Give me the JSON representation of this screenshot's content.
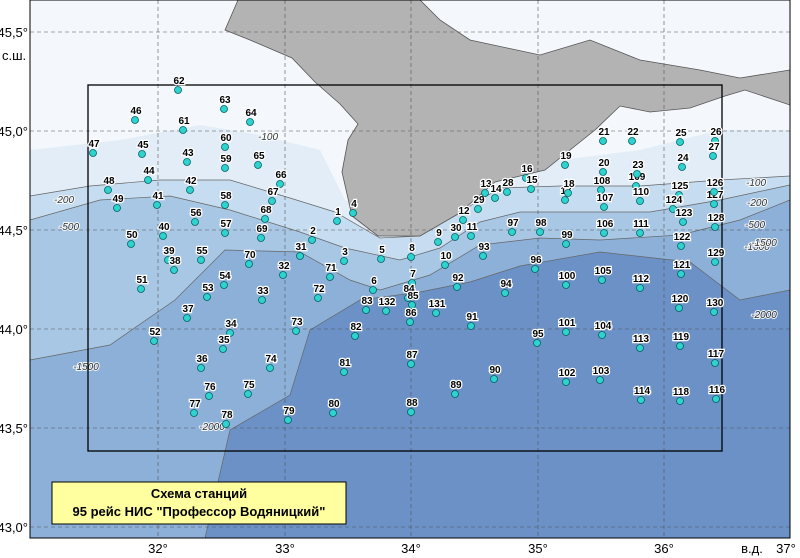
{
  "axes": {
    "lat_labels": [
      "45,5°",
      "45,0°",
      "44,5°",
      "44,0°",
      "43,5°",
      "43,0°"
    ],
    "lat_unit": "с.ш.",
    "lon_labels": [
      "32°",
      "33°",
      "34°",
      "35°",
      "36°",
      "37°"
    ],
    "lon_unit": "в.д."
  },
  "contour_labels": [
    "-100",
    "-200",
    "-500",
    "-1500",
    "-2000",
    "-100",
    "-200",
    "-500",
    "-1000",
    "-1500",
    "-2000"
  ],
  "stations": [
    "62",
    "63",
    "64",
    "46",
    "61",
    "47",
    "45",
    "60",
    "65",
    "43",
    "59",
    "44",
    "48",
    "42",
    "66",
    "67",
    "41",
    "49",
    "58",
    "56",
    "68",
    "57",
    "69",
    "40",
    "50",
    "1",
    "2",
    "4",
    "3",
    "5",
    "8",
    "31",
    "39",
    "38",
    "55",
    "70",
    "32",
    "71",
    "51",
    "54",
    "53",
    "33",
    "72",
    "6",
    "7",
    "84",
    "85",
    "83",
    "132",
    "86",
    "131",
    "37",
    "34",
    "35",
    "52",
    "73",
    "82",
    "36",
    "74",
    "81",
    "87",
    "76",
    "75",
    "77",
    "78",
    "79",
    "80",
    "88",
    "89",
    "90",
    "91",
    "92",
    "94",
    "93",
    "10",
    "9",
    "30",
    "12",
    "11",
    "29",
    "13",
    "14",
    "28",
    "97",
    "98",
    "16",
    "15",
    "17",
    "99",
    "96",
    "100",
    "95",
    "101",
    "102",
    "19",
    "18",
    "21",
    "20",
    "22",
    "108",
    "107",
    "106",
    "109",
    "23",
    "110",
    "111",
    "105",
    "104",
    "103",
    "112",
    "113",
    "114",
    "25",
    "24",
    "26",
    "27",
    "125",
    "124",
    "123",
    "127",
    "126",
    "128",
    "122",
    "121",
    "129",
    "120",
    "130",
    "119",
    "117",
    "118",
    "116"
  ],
  "legend": {
    "title": "Схема станций",
    "subtitle": "95 рейс НИС \"Профессор Водяницкий\""
  }
}
